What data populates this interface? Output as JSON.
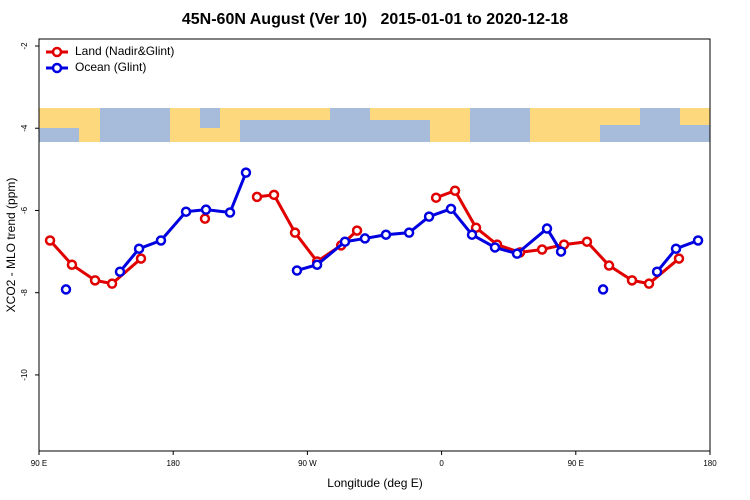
{
  "chart_data": {
    "type": "line",
    "title": "45N-60N August (Ver 10)   2015-01-01 to 2020-12-18",
    "xlabel": "Longitude (deg E)",
    "ylabel": "XCO2 - MLO trend (ppm)",
    "xlim": [
      90,
      540
    ],
    "ylim": [
      -11.85,
      -1.83
    ],
    "xticks": [
      {
        "value": 90,
        "label": "90 E"
      },
      180,
      {
        "value": 270,
        "label": "90 W"
      },
      {
        "value": 360,
        "label": "0"
      },
      {
        "value": 450,
        "label": "90 E"
      },
      180
    ],
    "yticks": [
      -2,
      -4,
      -6,
      -8,
      -10
    ],
    "legend": "top-left",
    "series": [
      {
        "name": "Land (Nadir&Glint)",
        "color": "#e00000",
        "x": [
          97.4,
          112.1,
          127.6,
          139,
          158.4,
          null,
          201.3,
          null,
          236.2,
          247.6,
          261.7,
          276.5,
          292.6,
          303.3,
          null,
          356.3,
          369,
          383.1,
          397.2,
          412.6,
          427.4,
          442.1,
          457.5,
          472.3,
          487.7,
          499.1,
          519.2
        ],
        "values": [
          -6.73,
          -7.32,
          -7.7,
          -7.78,
          -7.17,
          null,
          -6.2,
          null,
          -5.67,
          -5.62,
          -6.54,
          -7.24,
          -6.85,
          -6.49,
          null,
          -5.69,
          -5.52,
          -6.42,
          -6.83,
          -7.02,
          -6.95,
          -6.83,
          -6.76,
          -7.34,
          -7.7,
          -7.78,
          -7.17
        ]
      },
      {
        "name": "Ocean (Glint)",
        "color": "#0000e0",
        "x": [
          108.1,
          null,
          144.3,
          157.1,
          171.8,
          188.6,
          202,
          218.1,
          228.8,
          null,
          263,
          276.5,
          295.2,
          308.6,
          322.7,
          338.2,
          351.6,
          366.3,
          380.4,
          395.8,
          410.6,
          430.7,
          440.1,
          null,
          468.3,
          null,
          504.5,
          517.2,
          532
        ],
        "values": [
          -7.92,
          null,
          -7.49,
          -6.93,
          -6.73,
          -6.03,
          -5.98,
          -6.05,
          -5.08,
          null,
          -7.46,
          -7.32,
          -6.76,
          -6.68,
          -6.59,
          -6.54,
          -6.15,
          -5.96,
          -6.59,
          -6.9,
          -7.05,
          -6.44,
          -7,
          null,
          -7.92,
          null,
          -7.49,
          -6.93,
          -6.73
        ]
      }
    ]
  }
}
